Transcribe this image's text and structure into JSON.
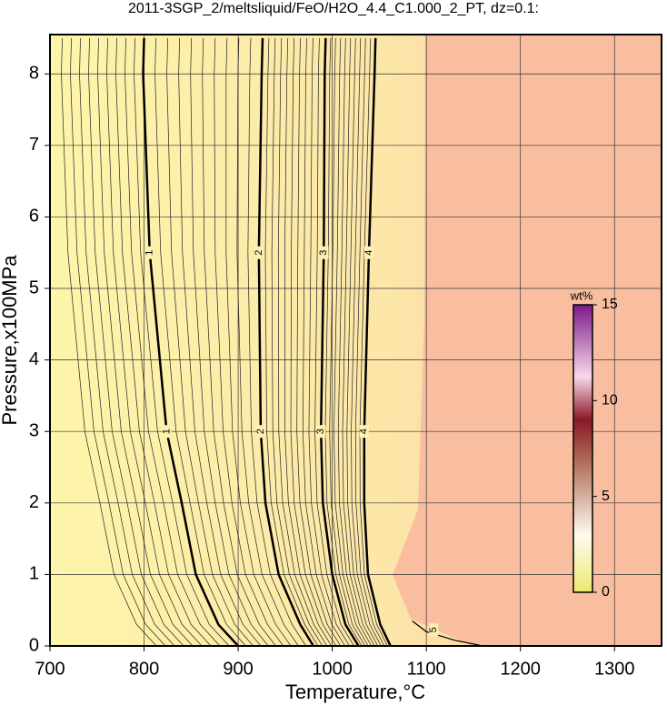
{
  "chart_data": {
    "type": "contour",
    "title": "2011-3SGP_2/meltsliquid/FeO/H2O_4.4_C1.000_2_PT, dz=0.1:",
    "x_label": "Temperature,°C",
    "y_label": "Pressure,x100MPa",
    "xlim": [
      700,
      1350
    ],
    "ylim": [
      0,
      8.55
    ],
    "xticks": [
      700,
      800,
      900,
      1000,
      1100,
      1200,
      1300
    ],
    "yticks": [
      0,
      1,
      2,
      3,
      4,
      5,
      6,
      7,
      8
    ],
    "grid": true,
    "contours": [
      {
        "level": 1,
        "x": [
          800,
          799,
          806,
          824,
          840,
          855,
          879,
          900
        ],
        "y": [
          8.5,
          8,
          5.5,
          3,
          2,
          1,
          0.3,
          0
        ]
      },
      {
        "level": 2,
        "x": [
          926,
          925,
          922,
          924,
          929,
          943,
          966,
          980
        ],
        "y": [
          8.5,
          8,
          5.5,
          3,
          2,
          1,
          0.3,
          0
        ]
      },
      {
        "level": 3,
        "x": [
          993,
          992,
          991,
          988,
          990,
          1000,
          1014,
          1028
        ],
        "y": [
          8.5,
          8,
          5.5,
          3,
          2,
          1,
          0.3,
          0
        ]
      },
      {
        "level": 4,
        "x": [
          1046,
          1045,
          1039,
          1034,
          1034,
          1038,
          1051,
          1062
        ],
        "y": [
          8.5,
          8,
          5.5,
          3,
          2,
          1,
          0.3,
          0
        ]
      },
      {
        "level": 5,
        "x": [
          1085,
          1100,
          1130,
          1160
        ],
        "y": [
          0.35,
          0.2,
          0.08,
          0
        ]
      }
    ],
    "colorbar": {
      "label": "wt%",
      "lim": [
        0,
        15
      ],
      "ticks": [
        0,
        5,
        10,
        15
      ]
    }
  }
}
